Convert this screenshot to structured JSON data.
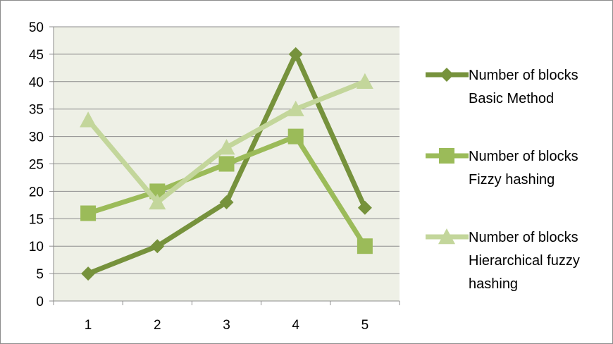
{
  "chart_data": {
    "type": "line",
    "title": "",
    "xlabel": "",
    "ylabel": "",
    "categories": [
      "1",
      "2",
      "3",
      "4",
      "5"
    ],
    "ylim": [
      0,
      50
    ],
    "yticks": [
      0,
      5,
      10,
      15,
      20,
      25,
      30,
      35,
      40,
      45,
      50
    ],
    "grid": true,
    "legend_position": "right",
    "plot_background": "#eef0e6",
    "gridline_color": "#8c8c8c",
    "series": [
      {
        "name_lines": [
          "Number of blocks",
          "Basic Method"
        ],
        "values": [
          5,
          10,
          18,
          45,
          17
        ],
        "color": "#76923c",
        "marker": "diamond"
      },
      {
        "name_lines": [
          "Number of blocks",
          "Fizzy hashing"
        ],
        "values": [
          16,
          20,
          25,
          30,
          10
        ],
        "color": "#9bbb59",
        "marker": "square"
      },
      {
        "name_lines": [
          "Number of blocks",
          "Hierarchical fuzzy",
          "hashing"
        ],
        "values": [
          33,
          18,
          28,
          35,
          40
        ],
        "color": "#c3d69b",
        "marker": "triangle"
      }
    ]
  }
}
